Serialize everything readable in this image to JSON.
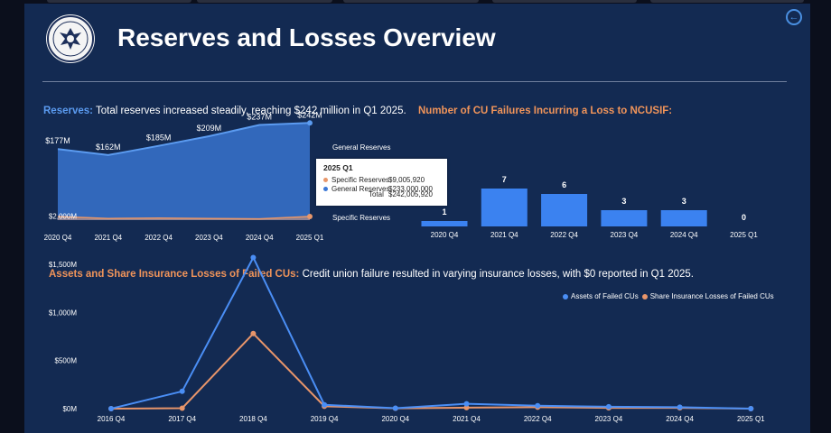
{
  "page": {
    "title": "Reserves and Losses Overview",
    "back_icon": "arrow-left-circle-icon",
    "seal_icon": "ncua-seal-icon"
  },
  "colors": {
    "background": "#132a52",
    "general_reserves": "#3b78d6",
    "specific_reserves": "#e8976a",
    "bars": "#3b82f0",
    "assets_line": "#4a8ef5",
    "losses_line": "#e8956a",
    "caption_blue": "#5b9bf0",
    "caption_orange": "#f0945a"
  },
  "captions": {
    "reserves_label": "Reserves:",
    "reserves_text": " Total reserves increased steadily, reaching $242 million in Q1 2025.",
    "failures_label": "Number of CU Failures Incurring a Loss to NCUSIF:",
    "assets_label": "Assets and Share Insurance Losses of Failed CUs:",
    "assets_text": " Credit union failure resulted in varying insurance losses, with $0 reported in Q1 2025."
  },
  "tooltip": {
    "title": "2025 Q1",
    "rows": [
      {
        "label": "Specific Reserves",
        "value": "$9,005,920",
        "color": "#e8976a"
      },
      {
        "label": "General Reserves",
        "value": "$233,000,000",
        "color": "#3b78d6"
      }
    ],
    "total_label": "Total",
    "total_value": "$242,005,920"
  },
  "chart_data": [
    {
      "type": "area",
      "title": "Reserves",
      "categories": [
        "2020 Q4",
        "2021 Q4",
        "2022 Q4",
        "2023 Q4",
        "2024 Q4",
        "2025 Q1"
      ],
      "total_labels": [
        "$177M",
        "$162M",
        "$185M",
        "$209M",
        "$237M",
        "$242M"
      ],
      "series": [
        {
          "name": "General Reserves",
          "values": [
            168,
            158,
            180,
            205,
            234,
            233
          ]
        },
        {
          "name": "Specific Reserves",
          "values": [
            9,
            4,
            5,
            4,
            3,
            9
          ]
        }
      ],
      "ylim": [
        0,
        250
      ],
      "legend": "inline-right"
    },
    {
      "type": "bar",
      "title": "Number of CU Failures Incurring a Loss to NCUSIF:",
      "categories": [
        "2020 Q4",
        "2021 Q4",
        "2022 Q4",
        "2023 Q4",
        "2024 Q4",
        "2025 Q1"
      ],
      "values": [
        1,
        7,
        6,
        3,
        3,
        0
      ],
      "ylim": [
        0,
        7
      ]
    },
    {
      "type": "line",
      "title": "Assets and Share Insurance Losses of Failed CUs",
      "categories": [
        "2016 Q4",
        "2017 Q4",
        "2018 Q4",
        "2019 Q4",
        "2020 Q4",
        "2021 Q4",
        "2022 Q4",
        "2023 Q4",
        "2024 Q4",
        "2025 Q1"
      ],
      "yticks": [
        "$0M",
        "$500M",
        "$1,000M",
        "$1,500M",
        "$2,000M"
      ],
      "ylim": [
        0,
        2000
      ],
      "series": [
        {
          "name": "Assets of Failed CUs",
          "values": [
            0,
            180,
            1570,
            40,
            5,
            50,
            30,
            20,
            15,
            0
          ]
        },
        {
          "name": "Share Insurance Losses of Failed CUs",
          "values": [
            0,
            5,
            780,
            25,
            3,
            10,
            15,
            8,
            8,
            0
          ]
        }
      ],
      "legend": "top-right"
    }
  ]
}
